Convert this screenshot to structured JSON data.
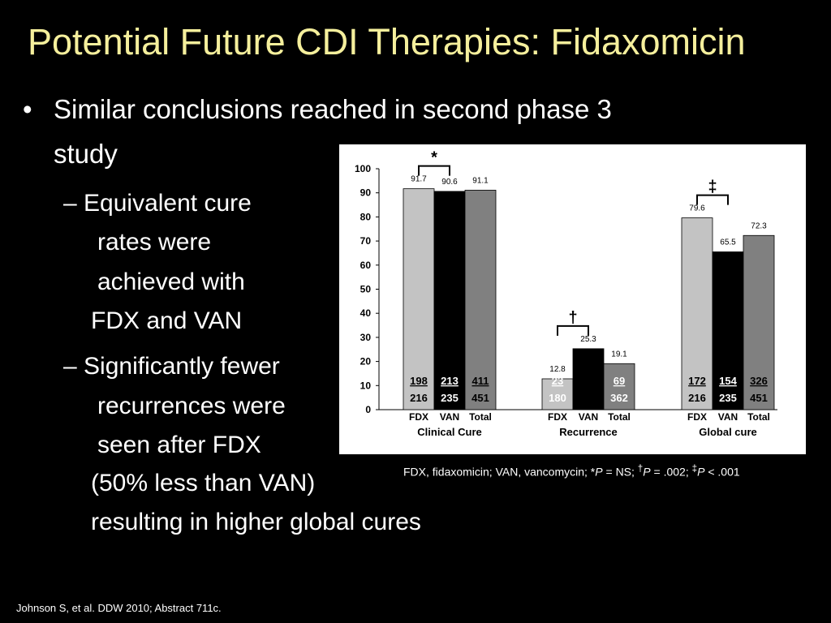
{
  "slide": {
    "title": "Potential Future CDI Therapies: Fidaxomicin",
    "bullet_char": "•",
    "bullet": {
      "line1": "Similar conclusions reached in second phase 3",
      "line2": "study"
    },
    "sub1": {
      "line1": "– Equivalent cure",
      "line2": "rates were",
      "line3": "achieved with",
      "line4": "FDX and VAN"
    },
    "sub2": {
      "line1": "– Significantly fewer",
      "line2": "recurrences were",
      "line3": "seen after FDX",
      "line4": "(50% less than VAN)",
      "line5": "resulting in higher global cures"
    },
    "footnote": {
      "prefix": "FDX, fidaxomicin; VAN, vancomycin; *",
      "p": "P",
      "ns": " = NS; ",
      "dagger": "†",
      "p2": " = .002; ",
      "ddagger": "‡",
      "p3": " < .001"
    },
    "citation": "Johnson S, et al.  DDW 2010; Abstract 711c."
  },
  "chart_data": {
    "type": "bar",
    "ylim": [
      0,
      100
    ],
    "yticks": [
      0,
      10,
      20,
      30,
      40,
      50,
      60,
      70,
      80,
      90,
      100
    ],
    "bar_labels": [
      "FDX",
      "VAN",
      "Total"
    ],
    "colors": [
      "#c3c3c3",
      "#000000",
      "#808080"
    ],
    "groups": [
      {
        "name": "Clinical Cure",
        "values": [
          91.7,
          90.6,
          91.1
        ],
        "value_labels": [
          "91.7",
          "90.6",
          "91.1"
        ],
        "counts": [
          {
            "num": "198",
            "den": "216"
          },
          {
            "num": "213",
            "den": "235"
          },
          {
            "num": "411",
            "den": "451"
          }
        ],
        "significance": "*"
      },
      {
        "name": "Recurrence",
        "values": [
          12.8,
          25.3,
          19.1
        ],
        "value_labels": [
          "12.8",
          "25.3",
          "19.1"
        ],
        "counts": [
          {
            "num": "23",
            "den": "180"
          },
          {
            "num": "",
            "den": ""
          },
          {
            "num": "69",
            "den": "362"
          }
        ],
        "significance": "†"
      },
      {
        "name": "Global cure",
        "values": [
          79.6,
          65.5,
          72.3
        ],
        "value_labels": [
          "79.6",
          "65.5",
          "72.3"
        ],
        "counts": [
          {
            "num": "172",
            "den": "216"
          },
          {
            "num": "154",
            "den": "235"
          },
          {
            "num": "326",
            "den": "451"
          }
        ],
        "significance": "‡"
      }
    ]
  }
}
